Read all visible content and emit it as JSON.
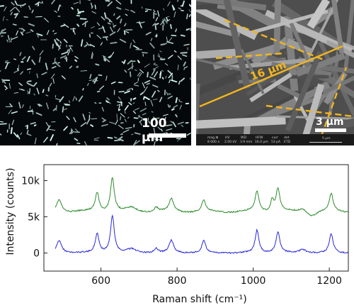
{
  "darkfield": {
    "scale_label": "100 μm"
  },
  "sem": {
    "scale_label": "3 μm",
    "length_label": "16 μm",
    "info_headers": [
      "mag ⊞",
      "HV",
      "WD",
      "HFW",
      "curr",
      "det"
    ],
    "info_values": [
      "8 000 x",
      "2.00 kV",
      "3.9 mm",
      "16.0 μm",
      "53 pA",
      "ETD"
    ],
    "info_scale": "5 μm",
    "line_color": "#f2b51e"
  },
  "chart_data": {
    "type": "line",
    "xlabel": "Raman shift (cm⁻¹)",
    "ylabel": "Intensity (counts)",
    "xlim": [
      450,
      1250
    ],
    "ylim": [
      -2500,
      12200
    ],
    "x_ticks": [
      "600",
      "800",
      "1000",
      "1200"
    ],
    "y_ticks": [
      "0",
      "5k",
      "10k"
    ],
    "x_tick_values": [
      600,
      800,
      1000,
      1200
    ],
    "y_tick_values": [
      0,
      5000,
      10000
    ],
    "grid": false,
    "series": [
      {
        "color": "#2e8b2e",
        "baseline": 5700,
        "peaks": [
          [
            490,
            1700,
            8
          ],
          [
            590,
            2600,
            6
          ],
          [
            630,
            4700,
            6
          ],
          [
            680,
            500,
            15
          ],
          [
            745,
            600,
            6
          ],
          [
            785,
            1700,
            7
          ],
          [
            870,
            1500,
            6
          ],
          [
            1010,
            2800,
            6
          ],
          [
            1050,
            1600,
            5
          ],
          [
            1065,
            3200,
            6
          ],
          [
            1130,
            400,
            10
          ],
          [
            1205,
            2400,
            6
          ]
        ]
      },
      {
        "color": "#2828d8",
        "baseline": 0,
        "peaks": [
          [
            490,
            1700,
            8
          ],
          [
            590,
            2600,
            6
          ],
          [
            630,
            5000,
            6
          ],
          [
            680,
            500,
            15
          ],
          [
            745,
            600,
            6
          ],
          [
            785,
            1700,
            7
          ],
          [
            870,
            1700,
            6
          ],
          [
            1010,
            3100,
            6
          ],
          [
            1065,
            2900,
            6
          ],
          [
            1130,
            500,
            10
          ],
          [
            1205,
            2600,
            6
          ]
        ]
      }
    ]
  }
}
